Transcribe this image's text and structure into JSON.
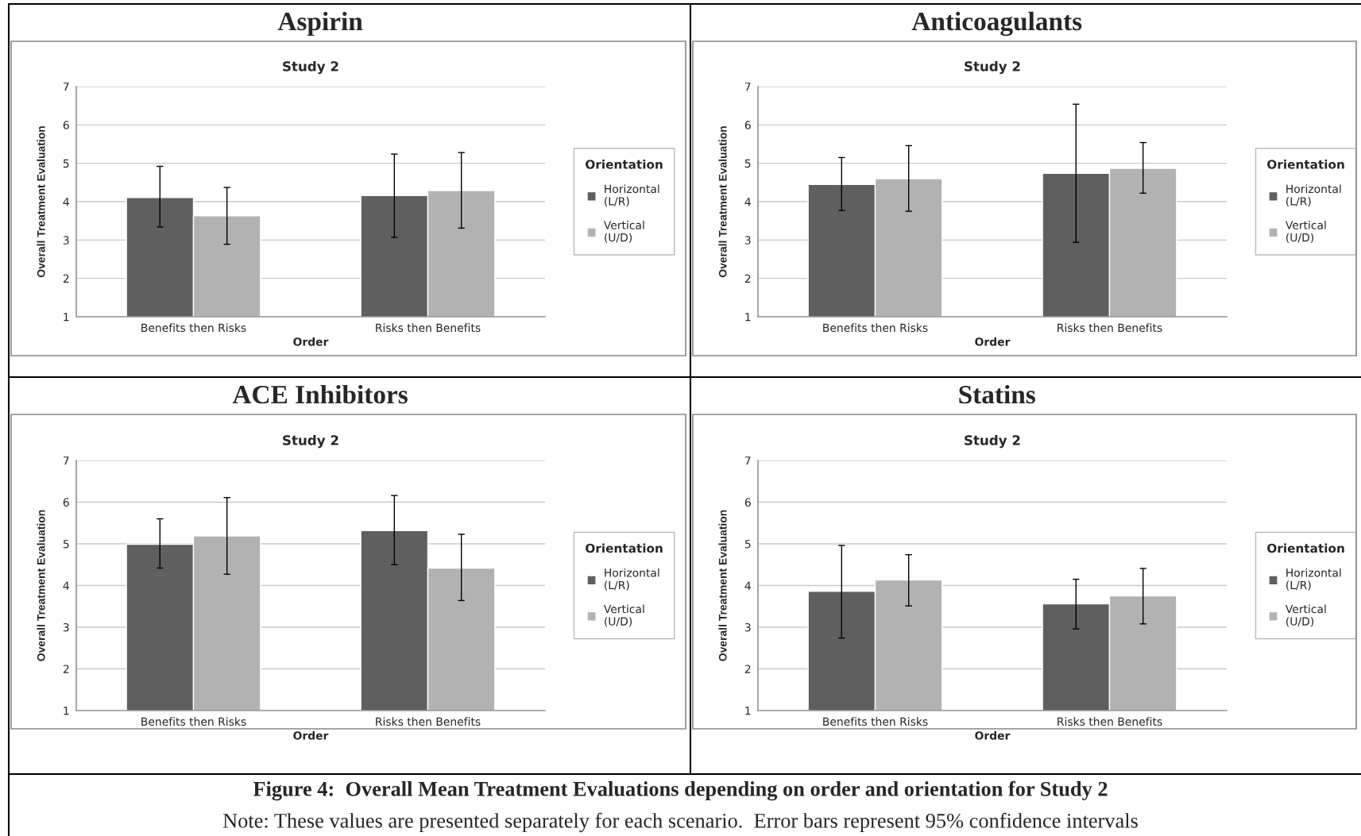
{
  "chart_data": [
    {
      "type": "bar",
      "title": "Aspirin",
      "subtitle": "Study 2",
      "xlabel": "Order",
      "ylabel": "Overall Treatment Evaluation",
      "legend_title": "Orientation",
      "legend": "right",
      "grid": "y",
      "categories": [
        "Benefits then Risks",
        "Risks then Benefits"
      ],
      "ylim": [
        1,
        7
      ],
      "yticks": [
        1,
        2,
        3,
        4,
        5,
        6,
        7
      ],
      "series": [
        {
          "name": "Horizontal\n(L/R)",
          "color": "#5f5f5f",
          "values": [
            4.11,
            4.16
          ],
          "errors": [
            [
              3.34,
              4.92
            ],
            [
              3.07,
              5.24
            ]
          ]
        },
        {
          "name": "Vertical\n(U/D)",
          "color": "#b2b2b2",
          "values": [
            3.63,
            4.29
          ],
          "errors": [
            [
              2.89,
              4.37
            ],
            [
              3.31,
              5.28
            ]
          ]
        }
      ]
    },
    {
      "type": "bar",
      "title": "Anticoagulants",
      "subtitle": "Study 2",
      "xlabel": "Order",
      "ylabel": "Overall Treatment Evaluation",
      "legend_title": "Orientation",
      "legend": "right",
      "grid": "y",
      "categories": [
        "Benefits then Risks",
        "Risks then Benefits"
      ],
      "ylim": [
        1,
        7
      ],
      "yticks": [
        1,
        2,
        3,
        4,
        5,
        6,
        7
      ],
      "series": [
        {
          "name": "Horizontal\n(L/R)",
          "color": "#5f5f5f",
          "values": [
            4.45,
            4.74
          ],
          "errors": [
            [
              3.77,
              5.15
            ],
            [
              2.94,
              6.54
            ]
          ]
        },
        {
          "name": "Vertical\n(U/D)",
          "color": "#b2b2b2",
          "values": [
            4.6,
            4.87
          ],
          "errors": [
            [
              3.75,
              5.46
            ],
            [
              4.22,
              5.54
            ]
          ]
        }
      ]
    },
    {
      "type": "bar",
      "title": "ACE Inhibitors",
      "subtitle": "Study 2",
      "xlabel": "Order",
      "ylabel": "Overall Treatment Evaluation",
      "legend_title": "Orientation",
      "legend": "right",
      "grid": "y",
      "categories": [
        "Benefits then Risks",
        "Risks then Benefits"
      ],
      "ylim": [
        1,
        7
      ],
      "yticks": [
        1,
        2,
        3,
        4,
        5,
        6,
        7
      ],
      "series": [
        {
          "name": "Horizontal\n(L/R)",
          "color": "#5f5f5f",
          "values": [
            4.99,
            5.32
          ],
          "errors": [
            [
              4.42,
              5.6
            ],
            [
              4.5,
              6.16
            ]
          ]
        },
        {
          "name": "Vertical\n(U/D)",
          "color": "#b2b2b2",
          "values": [
            5.19,
            4.42
          ],
          "errors": [
            [
              4.27,
              6.11
            ],
            [
              3.64,
              5.23
            ]
          ]
        }
      ]
    },
    {
      "type": "bar",
      "title": "Statins",
      "subtitle": "Study 2",
      "xlabel": "Order",
      "ylabel": "Overall Treatment Evaluation",
      "legend_title": "Orientation",
      "legend": "right",
      "grid": "y",
      "categories": [
        "Benefits then Risks",
        "Risks then Benefits"
      ],
      "ylim": [
        1,
        7
      ],
      "yticks": [
        1,
        2,
        3,
        4,
        5,
        6,
        7
      ],
      "series": [
        {
          "name": "Horizontal\n(L/R)",
          "color": "#5f5f5f",
          "values": [
            3.86,
            3.56
          ],
          "errors": [
            [
              2.74,
              4.96
            ],
            [
              2.96,
              4.15
            ]
          ]
        },
        {
          "name": "Vertical\n(U/D)",
          "color": "#b2b2b2",
          "values": [
            4.13,
            3.75
          ],
          "errors": [
            [
              3.51,
              4.74
            ],
            [
              3.08,
              4.41
            ]
          ]
        }
      ],
      "annotations": [
        "Figure 4:  Overall Mean Treatment Evaluations depending on order and orientation for Study 2",
        "Note: These values are presented separately for each scenario.  Error bars represent 95% confidence intervals"
      ]
    }
  ]
}
